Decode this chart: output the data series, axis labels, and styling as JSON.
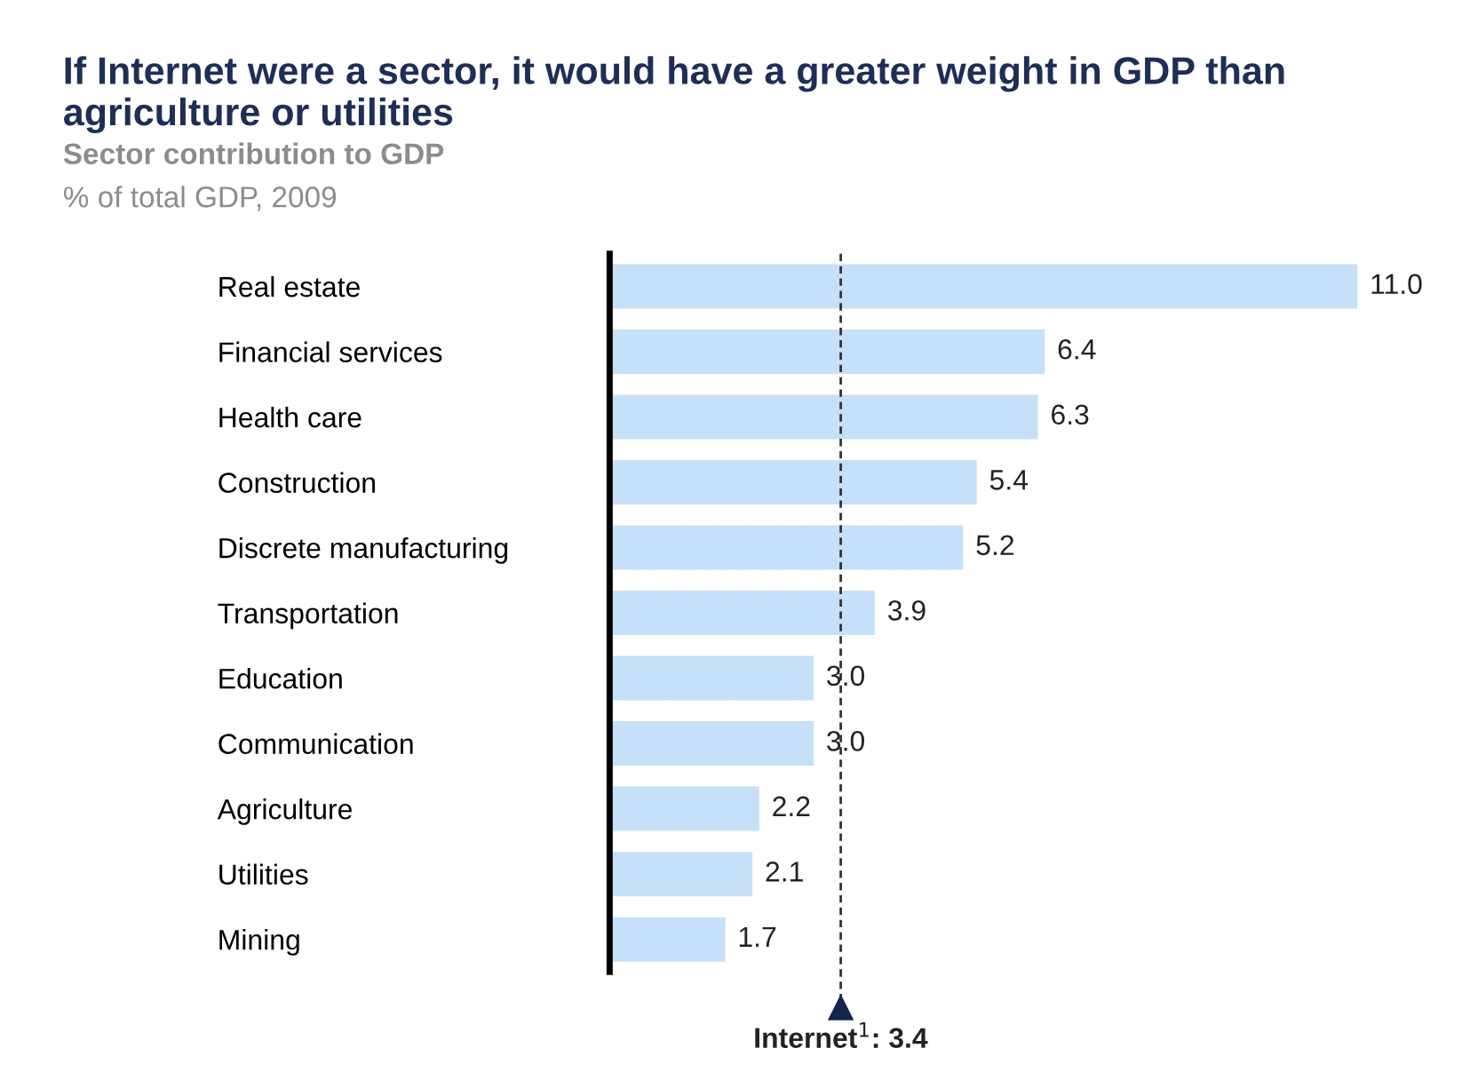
{
  "chart_data": {
    "type": "bar",
    "orientation": "horizontal",
    "title": "If Internet were a sector, it would have a greater weight in GDP than agriculture or utilities",
    "subtitle": "Sector contribution to GDP",
    "xlabel": "% of total GDP, 2009",
    "categories": [
      "Real estate",
      "Financial services",
      "Health care",
      "Construction",
      "Discrete manufacturing",
      "Transportation",
      "Education",
      "Communication",
      "Agriculture",
      "Utilities",
      "Mining"
    ],
    "values": [
      11.0,
      6.4,
      6.3,
      5.4,
      5.2,
      3.9,
      3.0,
      3.0,
      2.2,
      2.1,
      1.7
    ],
    "value_labels": [
      "11.0",
      "6.4",
      "6.3",
      "5.4",
      "5.2",
      "3.9",
      "3.0",
      "3.0",
      "2.2",
      "2.1",
      "1.7"
    ],
    "color": "#c6e0fa",
    "tick_labels": "y",
    "grid": false,
    "ref_lines": [
      {
        "axis": "x",
        "value": 3.4,
        "label": "Internet$^{1}$: 3.4",
        "color": "#333333",
        "line_style": "dashed"
      }
    ]
  }
}
